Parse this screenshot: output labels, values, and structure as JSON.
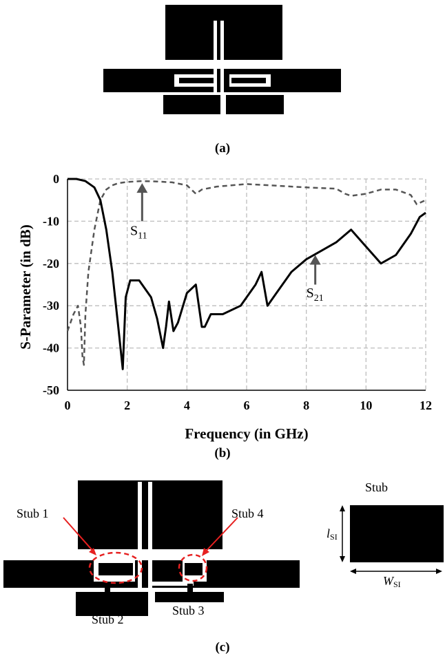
{
  "captions": {
    "a": "(a)",
    "b": "(b)",
    "c": "(c)"
  },
  "chart_data": {
    "type": "line",
    "xlabel": "Frequency (in GHz)",
    "ylabel": "S-Parameter (in dB)",
    "xlim": [
      0,
      12
    ],
    "ylim": [
      -50,
      0
    ],
    "xticks": [
      "0",
      "2",
      "4",
      "6",
      "8",
      "10",
      "12"
    ],
    "yticks": [
      "0",
      "-10",
      "-20",
      "-30",
      "-40",
      "-50"
    ],
    "grid": true,
    "series": [
      {
        "name": "S11",
        "label_base": "S",
        "label_sub": "11",
        "style": "dashed",
        "color": "#555555",
        "x": [
          0,
          0.2,
          0.35,
          0.45,
          0.5,
          0.55,
          0.6,
          0.7,
          0.9,
          1.1,
          1.3,
          1.5,
          1.7,
          2.0,
          2.5,
          3.0,
          3.5,
          4.0,
          4.3,
          4.5,
          5.0,
          6.0,
          7.0,
          8.0,
          9.0,
          9.3,
          9.5,
          10.0,
          10.5,
          11.0,
          11.5,
          11.7,
          12.0
        ],
        "y": [
          -36,
          -32,
          -30,
          -35,
          -42,
          -44,
          -32,
          -22,
          -12,
          -5,
          -2.5,
          -1.5,
          -1,
          -0.7,
          -0.5,
          -0.6,
          -0.8,
          -1.5,
          -3.5,
          -2.5,
          -1.8,
          -1.2,
          -1.6,
          -2,
          -2.3,
          -3.5,
          -4,
          -3.5,
          -2.5,
          -2.5,
          -3.8,
          -6,
          -5
        ]
      },
      {
        "name": "S21",
        "label_base": "S",
        "label_sub": "21",
        "style": "solid",
        "color": "#000000",
        "x": [
          0,
          0.3,
          0.6,
          0.9,
          1.1,
          1.3,
          1.5,
          1.7,
          1.85,
          1.95,
          2.1,
          2.4,
          2.8,
          3.0,
          3.2,
          3.3,
          3.4,
          3.55,
          3.7,
          4.0,
          4.3,
          4.5,
          4.6,
          4.8,
          5.2,
          5.8,
          6.3,
          6.5,
          6.7,
          7.0,
          7.5,
          8.0,
          8.5,
          9.0,
          9.5,
          10.0,
          10.5,
          11.0,
          11.5,
          11.8,
          12.0
        ],
        "y": [
          0,
          0,
          -0.5,
          -2,
          -5,
          -12,
          -22,
          -35,
          -45,
          -28,
          -24,
          -24,
          -28,
          -33,
          -40,
          -35,
          -29,
          -36,
          -34,
          -27,
          -25,
          -35,
          -35,
          -32,
          -32,
          -30,
          -25,
          -22,
          -30,
          -27,
          -22,
          -19,
          -17,
          -15,
          -12,
          -16,
          -20,
          -18,
          -13,
          -9,
          -8
        ]
      }
    ]
  },
  "stub_labels": {
    "stub1": "Stub 1",
    "stub2": "Stub 2",
    "stub3": "Stub 3",
    "stub4": "Stub 4",
    "stub_title": "Stub",
    "l_base": "l",
    "l_sub": "SI",
    "w_base": "W",
    "w_sub": "SI"
  },
  "colors": {
    "metal": "#000000",
    "highlight": "#e62020"
  }
}
